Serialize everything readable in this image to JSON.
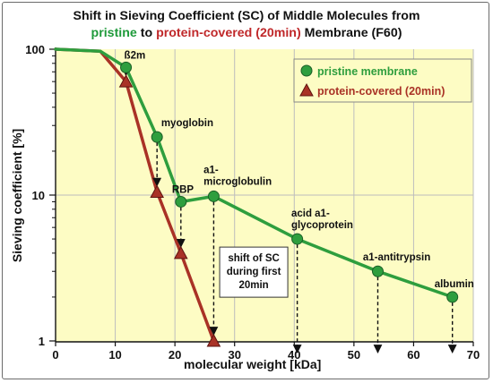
{
  "chart_data": {
    "type": "line",
    "title_parts": {
      "line1": "Shift in Sieving Coefficient (SC) of Middle Molecules from",
      "pristine": "pristine",
      "to": " to ",
      "covered": "protein-covered (20min)",
      "rest": " Membrane (F60)"
    },
    "xlabel": "molecular weight [kDa]",
    "ylabel": "Sieving coefficient [%]",
    "xlim": [
      0,
      70
    ],
    "ylim": [
      1,
      100
    ],
    "yscale": "log",
    "xticks": [
      0,
      10,
      20,
      30,
      40,
      50,
      60,
      70
    ],
    "yticks": [
      1,
      10,
      100
    ],
    "legend_position": "top-right",
    "colors": {
      "pristine": "#2e9e3e",
      "covered": "#a93226",
      "plot_bg": "#fdfcc4"
    },
    "series": [
      {
        "name": "pristine membrane",
        "marker": "circle",
        "points": [
          {
            "x": 11.8,
            "y": 75,
            "label": "ß2m"
          },
          {
            "x": 17,
            "y": 25,
            "label": "myoglobin"
          },
          {
            "x": 21,
            "y": 9,
            "label": "RBP"
          },
          {
            "x": 26.5,
            "y": 9.8,
            "label": "a1-microglobulin"
          },
          {
            "x": 40.5,
            "y": 5,
            "label": "acid a1-glycoprotein"
          },
          {
            "x": 54,
            "y": 3,
            "label": "a1-antitrypsin"
          },
          {
            "x": 66.5,
            "y": 2,
            "label": "albumin"
          }
        ]
      },
      {
        "name": "protein-covered (20min)",
        "marker": "triangle",
        "points": [
          {
            "x": 11.8,
            "y": 60
          },
          {
            "x": 17,
            "y": 10.5
          },
          {
            "x": 21,
            "y": 4
          },
          {
            "x": 26.5,
            "y": 1
          }
        ]
      }
    ],
    "annotation": [
      "shift of SC",
      "during first",
      "20min"
    ],
    "point_labels": {
      "b2m": "ß2m",
      "myoglobin": "myoglobin",
      "rbp": "RBP",
      "a1micro": [
        "a1-",
        "microglobulin"
      ],
      "acid": [
        "acid a1-",
        "glycoprotein"
      ],
      "antitrypsin": "a1-antitrypsin",
      "albumin": "albumin"
    }
  }
}
